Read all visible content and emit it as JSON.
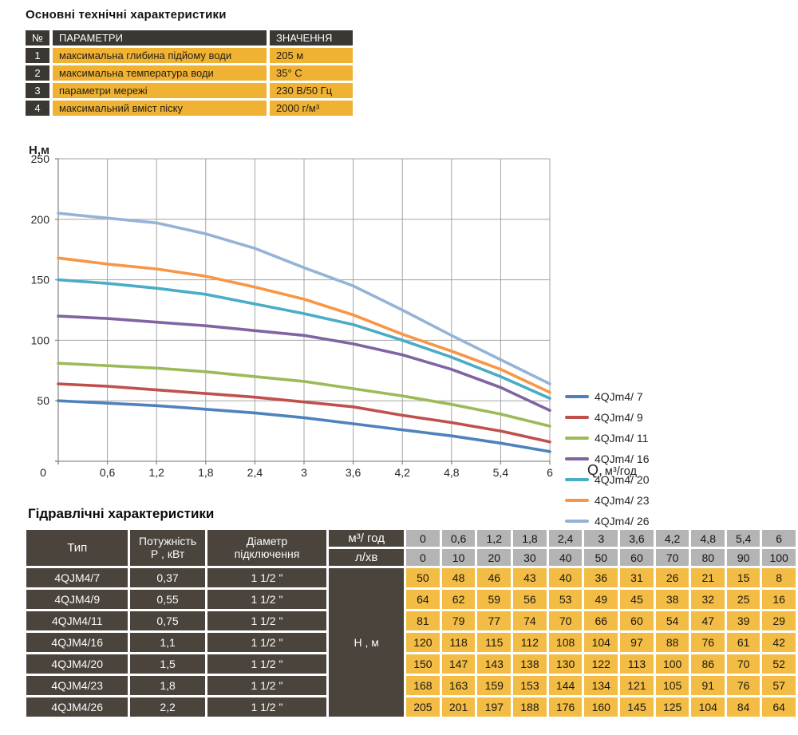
{
  "tech_specs": {
    "title": "Основні технічні характеристики",
    "headers": {
      "num": "№",
      "param": "ПАРАМЕТРИ",
      "value": "ЗНАЧЕННЯ"
    },
    "rows": [
      {
        "num": "1",
        "param": "максимальна глибина підйому води",
        "value": "205 м"
      },
      {
        "num": "2",
        "param": "максимальна температура води",
        "value": "35° С"
      },
      {
        "num": "3",
        "param": "параметри мережі",
        "value": "230 В/50 Гц"
      },
      {
        "num": "4",
        "param": "максимальний вміст піску",
        "value": "2000 г/м³"
      }
    ]
  },
  "chart_data": {
    "type": "line",
    "title": "",
    "ylabel": "Н,м",
    "xlabel": "Q,  м³/год",
    "xlim": [
      0,
      6
    ],
    "ylim": [
      0,
      250
    ],
    "grid": true,
    "legend_position": "right",
    "x": [
      0,
      0.6,
      1.2,
      1.8,
      2.4,
      3,
      3.6,
      4.2,
      4.8,
      5.4,
      6
    ],
    "x_tick_labels": [
      "0",
      "0,6",
      "1,2",
      "1,8",
      "2,4",
      "3",
      "3,6",
      "4,2",
      "4,8",
      "5,4",
      "6"
    ],
    "y_ticks": [
      0,
      50,
      100,
      150,
      200,
      250
    ],
    "grid_color": "#a3a3a3",
    "axis_color": "#8c8c8c",
    "series": [
      {
        "name": "4QJm4/ 7",
        "color": "#4F81BD",
        "values": [
          50,
          48,
          46,
          43,
          40,
          36,
          31,
          26,
          21,
          15,
          8
        ]
      },
      {
        "name": "4QJm4/ 9",
        "color": "#C0504D",
        "values": [
          64,
          62,
          59,
          56,
          53,
          49,
          45,
          38,
          32,
          25,
          16
        ]
      },
      {
        "name": "4QJm4/ 11",
        "color": "#9BBB59",
        "values": [
          81,
          79,
          77,
          74,
          70,
          66,
          60,
          54,
          47,
          39,
          29
        ]
      },
      {
        "name": "4QJm4/ 16",
        "color": "#8064A2",
        "values": [
          120,
          118,
          115,
          112,
          108,
          104,
          97,
          88,
          76,
          61,
          42
        ]
      },
      {
        "name": "4QJm4/ 20",
        "color": "#4BACC6",
        "values": [
          150,
          147,
          143,
          138,
          130,
          122,
          113,
          100,
          86,
          70,
          52
        ]
      },
      {
        "name": "4QJm4/ 23",
        "color": "#F79646",
        "values": [
          168,
          163,
          159,
          153,
          144,
          134,
          121,
          105,
          91,
          76,
          57
        ]
      },
      {
        "name": "4QJm4/ 26",
        "color": "#95B3D7",
        "values": [
          205,
          201,
          197,
          188,
          176,
          160,
          145,
          125,
          104,
          84,
          64
        ]
      }
    ]
  },
  "hydraulic": {
    "title": "Гідравлічні характеристики",
    "headers": {
      "type": "Тип",
      "power_line1": "Потужність",
      "power_line2": "Р , кВт",
      "diameter_line1": "Діаметр",
      "diameter_line2": "підключення",
      "flow_m3": "м³/ год",
      "flow_l": "л/хв",
      "head_label": "Н , м"
    },
    "flow_m3_values": [
      "0",
      "0,6",
      "1,2",
      "1,8",
      "2,4",
      "3",
      "3,6",
      "4,2",
      "4,8",
      "5,4",
      "6"
    ],
    "flow_l_values": [
      "0",
      "10",
      "20",
      "30",
      "40",
      "50",
      "60",
      "70",
      "80",
      "90",
      "100"
    ],
    "rows": [
      {
        "type": "4QJM4/7",
        "power": "0,37",
        "diameter": "1 1/2 \"",
        "heads": [
          50,
          48,
          46,
          43,
          40,
          36,
          31,
          26,
          21,
          15,
          8
        ]
      },
      {
        "type": "4QJM4/9",
        "power": "0,55",
        "diameter": "1 1/2 \"",
        "heads": [
          64,
          62,
          59,
          56,
          53,
          49,
          45,
          38,
          32,
          25,
          16
        ]
      },
      {
        "type": "4QJM4/11",
        "power": "0,75",
        "diameter": "1 1/2 \"",
        "heads": [
          81,
          79,
          77,
          74,
          70,
          66,
          60,
          54,
          47,
          39,
          29
        ]
      },
      {
        "type": "4QJM4/16",
        "power": "1,1",
        "diameter": "1 1/2 \"",
        "heads": [
          120,
          118,
          115,
          112,
          108,
          104,
          97,
          88,
          76,
          61,
          42
        ]
      },
      {
        "type": "4QJM4/20",
        "power": "1,5",
        "diameter": "1 1/2 \"",
        "heads": [
          150,
          147,
          143,
          138,
          130,
          122,
          113,
          100,
          86,
          70,
          52
        ]
      },
      {
        "type": "4QJM4/23",
        "power": "1,8",
        "diameter": "1 1/2 \"",
        "heads": [
          168,
          163,
          159,
          153,
          144,
          134,
          121,
          105,
          91,
          76,
          57
        ]
      },
      {
        "type": "4QJM4/26",
        "power": "2,2",
        "diameter": "1 1/2 \"",
        "heads": [
          205,
          201,
          197,
          188,
          176,
          160,
          145,
          125,
          104,
          84,
          64
        ]
      }
    ]
  },
  "colors": {
    "table_dark": "#3b3733",
    "table_dark_bottom": "#4a443d",
    "table_yellow_top": "#efb232",
    "table_yellow_bottom": "#f2bc45",
    "table_gray": "#b4b4b4"
  }
}
